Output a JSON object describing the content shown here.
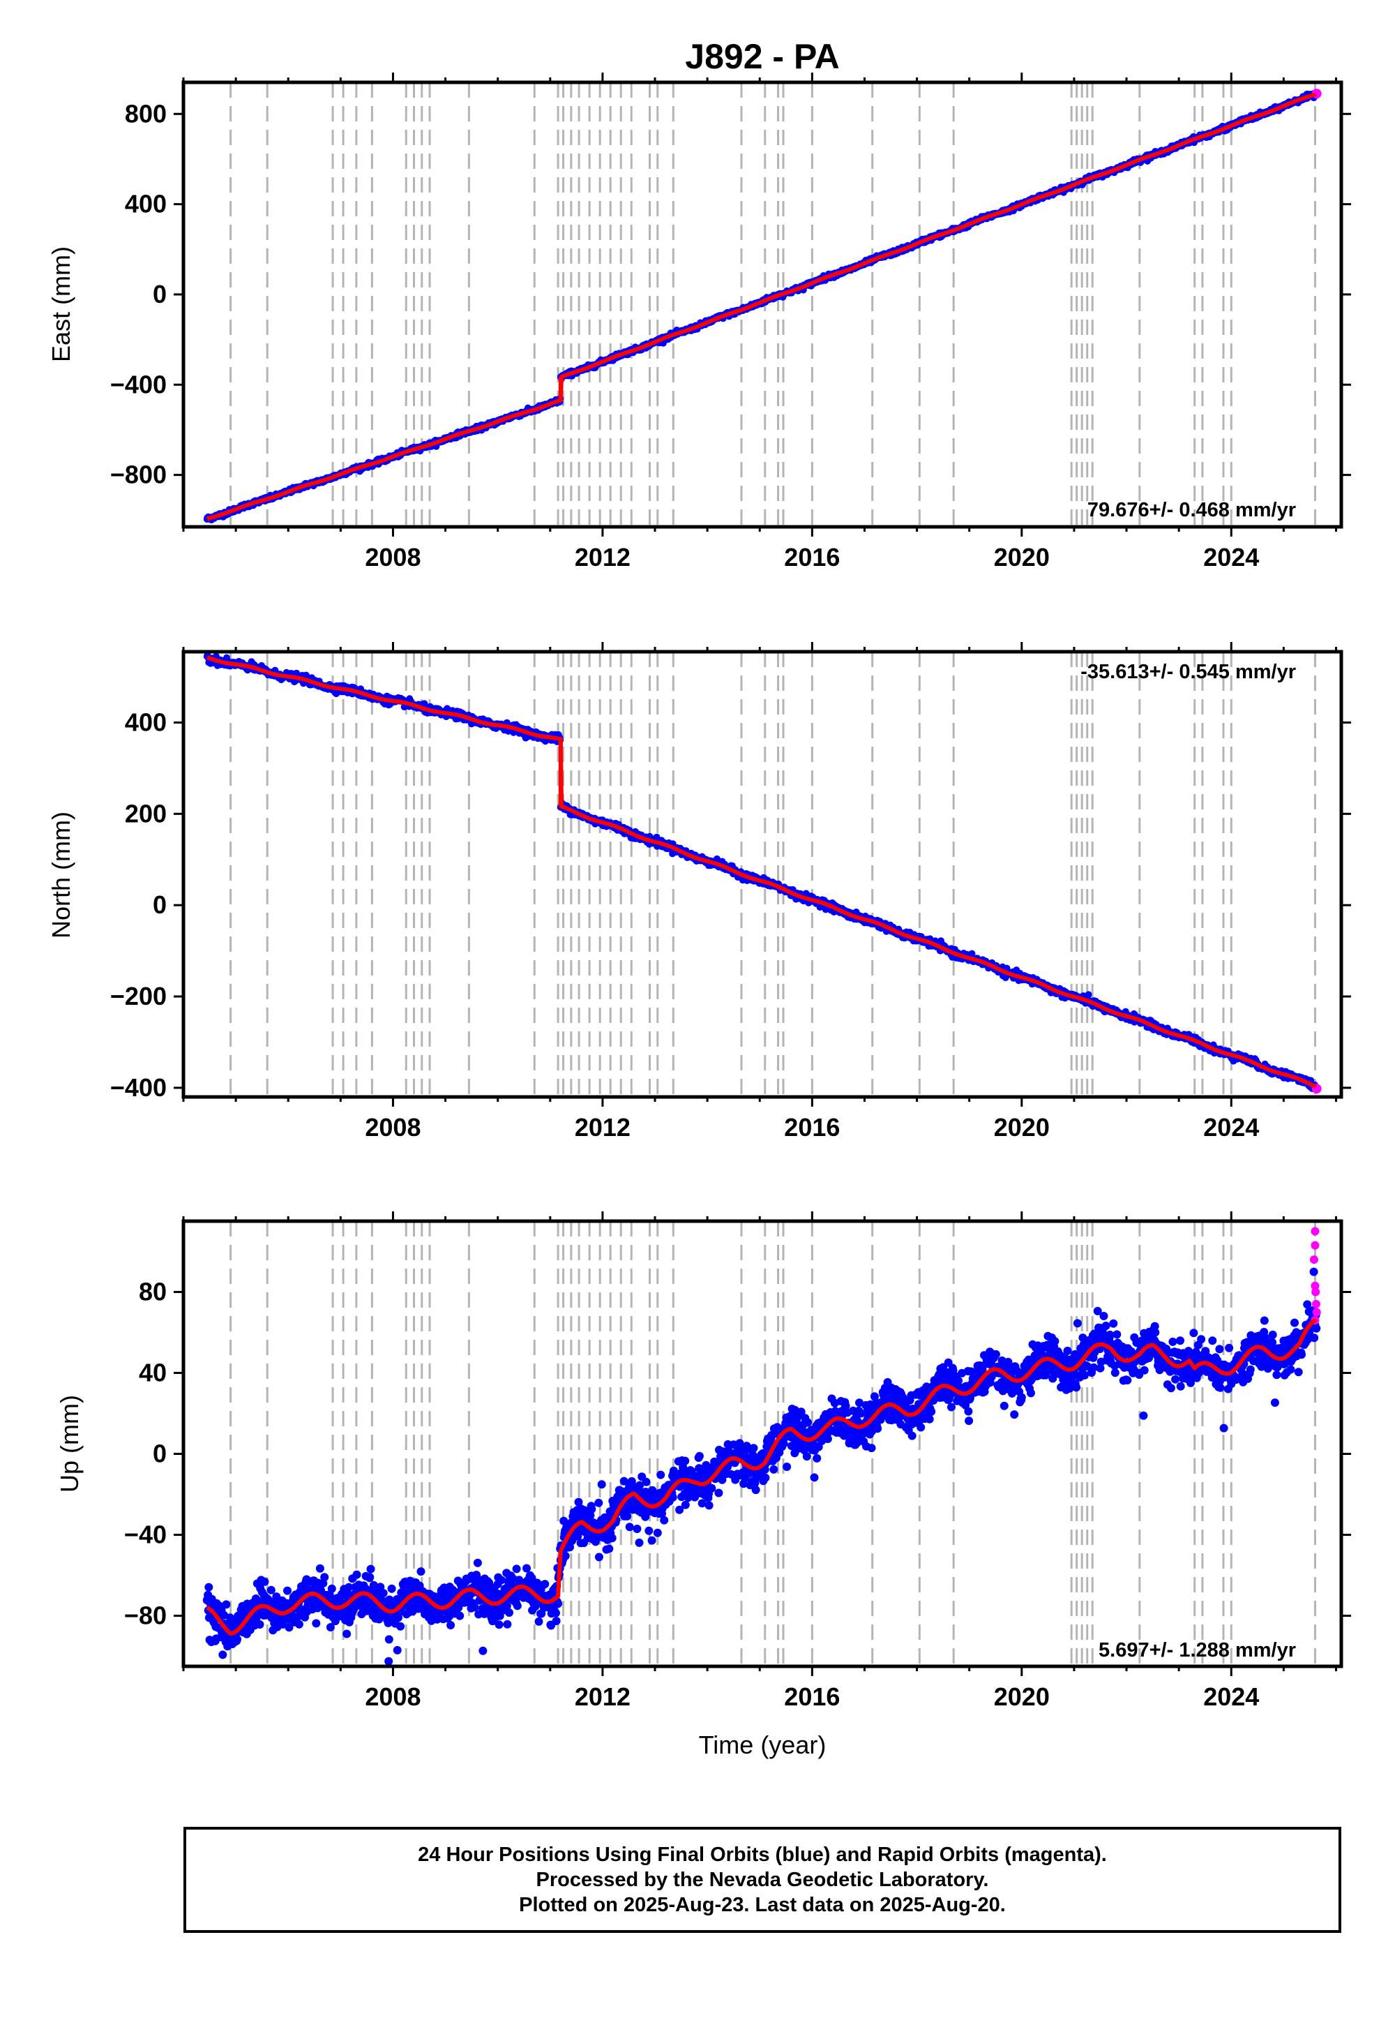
{
  "title": "J892 - PA",
  "colors": {
    "final_orbits": "#0000ff",
    "rapid_orbits": "#ff00ff",
    "model": "#ff0000",
    "event_lines": "#b4b4b4"
  },
  "x_axis": {
    "label": "Time (year)",
    "range": [
      2004.0,
      2026.1
    ],
    "ticks": [
      2008,
      2012,
      2016,
      2020,
      2024
    ]
  },
  "events": [
    2004.9,
    2005.6,
    2006.85,
    2007.05,
    2007.3,
    2007.6,
    2008.25,
    2008.4,
    2008.55,
    2008.7,
    2009.45,
    2010.7,
    2011.15,
    2011.25,
    2011.4,
    2011.55,
    2011.75,
    2011.95,
    2012.15,
    2012.35,
    2012.55,
    2012.9,
    2013.05,
    2013.35,
    2014.65,
    2015.1,
    2015.35,
    2015.45,
    2016.0,
    2017.15,
    2018.05,
    2018.7,
    2020.95,
    2021.05,
    2021.15,
    2021.25,
    2021.35,
    2022.25,
    2023.3,
    2023.45,
    2023.85,
    2024.0,
    2025.6
  ],
  "chart_data": [
    {
      "type": "scatter",
      "component": "east",
      "ylabel": "East (mm)",
      "ylim": [
        -1030,
        940
      ],
      "yticks": [
        -800,
        -400,
        0,
        400,
        800
      ],
      "rate_label": "79.676+/- 0.468 mm/yr",
      "rate_position": "bottom-right",
      "start": {
        "x": 2004.45,
        "y": -995
      },
      "offset": {
        "x": 2011.2,
        "before": -470,
        "after": -368
      },
      "end": {
        "x": 2025.63,
        "y": 890
      },
      "noise_mm": 5,
      "seasonal_mm": 2,
      "rapid_final_y": 890
    },
    {
      "type": "scatter",
      "component": "north",
      "ylabel": "North (mm)",
      "ylim": [
        -420,
        555
      ],
      "yticks": [
        -400,
        -200,
        0,
        200,
        400
      ],
      "rate_label": "-35.613+/- 0.545 mm/yr",
      "rate_position": "top-right",
      "start": {
        "x": 2004.45,
        "y": 542
      },
      "offset": {
        "x": 2011.2,
        "before": 362,
        "after": 215
      },
      "end": {
        "x": 2025.63,
        "y": -397
      },
      "noise_mm": 4,
      "seasonal_mm": 2,
      "rapid_final_y": -402
    },
    {
      "type": "scatter",
      "component": "up",
      "ylabel": "Up (mm)",
      "ylim": [
        -105,
        115
      ],
      "yticks": [
        -80,
        -40,
        0,
        40,
        80
      ],
      "rate_label": "5.697+/- 1.288 mm/yr",
      "rate_position": "bottom-right",
      "model_series": [
        [
          2004.45,
          -80
        ],
        [
          2004.9,
          -85
        ],
        [
          2005.4,
          -80
        ],
        [
          2006.0,
          -74
        ],
        [
          2007.0,
          -72
        ],
        [
          2008.0,
          -74
        ],
        [
          2009.0,
          -72
        ],
        [
          2010.0,
          -70
        ],
        [
          2011.15,
          -69
        ],
        [
          2011.2,
          -48
        ],
        [
          2011.6,
          -36
        ],
        [
          2012.2,
          -33
        ],
        [
          2012.6,
          -22
        ],
        [
          2013.2,
          -22
        ],
        [
          2013.8,
          -12
        ],
        [
          2014.5,
          -6
        ],
        [
          2015.1,
          -2
        ],
        [
          2015.6,
          10
        ],
        [
          2016.3,
          12
        ],
        [
          2017.0,
          18
        ],
        [
          2017.8,
          22
        ],
        [
          2018.7,
          32
        ],
        [
          2019.5,
          38
        ],
        [
          2020.3,
          42
        ],
        [
          2021.0,
          46
        ],
        [
          2021.7,
          52
        ],
        [
          2022.25,
          48
        ],
        [
          2022.5,
          50
        ],
        [
          2023.2,
          46
        ],
        [
          2023.3,
          40
        ],
        [
          2024.0,
          44
        ],
        [
          2024.6,
          50
        ],
        [
          2025.3,
          52
        ],
        [
          2025.63,
          65
        ]
      ],
      "seasonal_mm": 4,
      "noise_mm": 5,
      "rapid_points": [
        [
          2025.6,
          110
        ],
        [
          2025.6,
          103
        ],
        [
          2025.58,
          96
        ],
        [
          2025.6,
          83
        ],
        [
          2025.61,
          80
        ],
        [
          2025.62,
          74
        ],
        [
          2025.63,
          70
        ],
        [
          2025.6,
          66
        ]
      ]
    }
  ],
  "caption": {
    "line1": "24 Hour Positions Using Final Orbits (blue) and Rapid Orbits (magenta).",
    "line2": "Processed by the Nevada Geodetic Laboratory.",
    "line3": "Plotted on 2025-Aug-23. Last data on 2025-Aug-20."
  }
}
